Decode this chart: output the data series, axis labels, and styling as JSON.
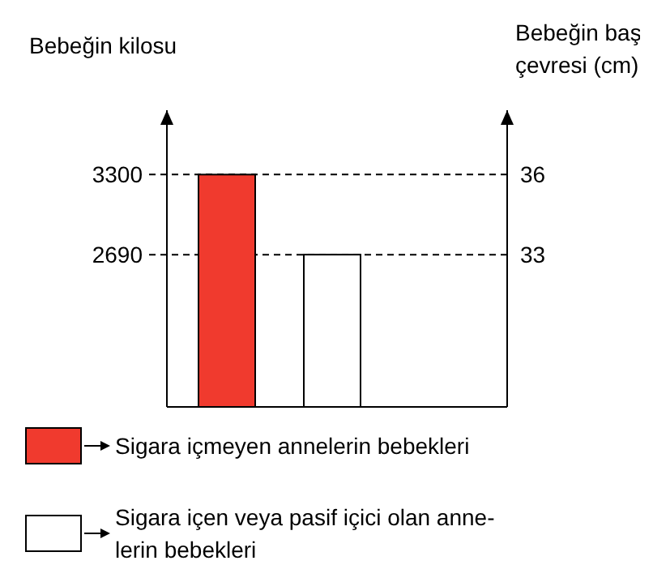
{
  "chart_data": {
    "type": "bar",
    "ylabel": "Bebeğin kilosu",
    "y2label": "Bebeğin baş\nçevresi (cm)",
    "categories": [
      null,
      null
    ],
    "series": [
      {
        "name": "Sigara içmeyen annelerin bebekleri",
        "color": "#f03a2e",
        "values": [
          3300,
          null
        ]
      },
      {
        "name": "Sigara içen veya pasif içici olan anne-\nlerin bebekleri",
        "color": "#ffffff",
        "values": [
          null,
          2690
        ]
      }
    ],
    "ylim": [
      1530,
      3790
    ],
    "yticks": [
      2690,
      3300
    ],
    "y2lim": [
      27.3,
      38.4
    ],
    "y2ticks": [
      33,
      36
    ],
    "ref_lines": [
      {
        "axis": "y",
        "value": 3300,
        "line_style": "dashed"
      },
      {
        "axis": "y",
        "value": 2690,
        "line_style": "dashed"
      }
    ],
    "grid": false,
    "legend": "bottom"
  }
}
